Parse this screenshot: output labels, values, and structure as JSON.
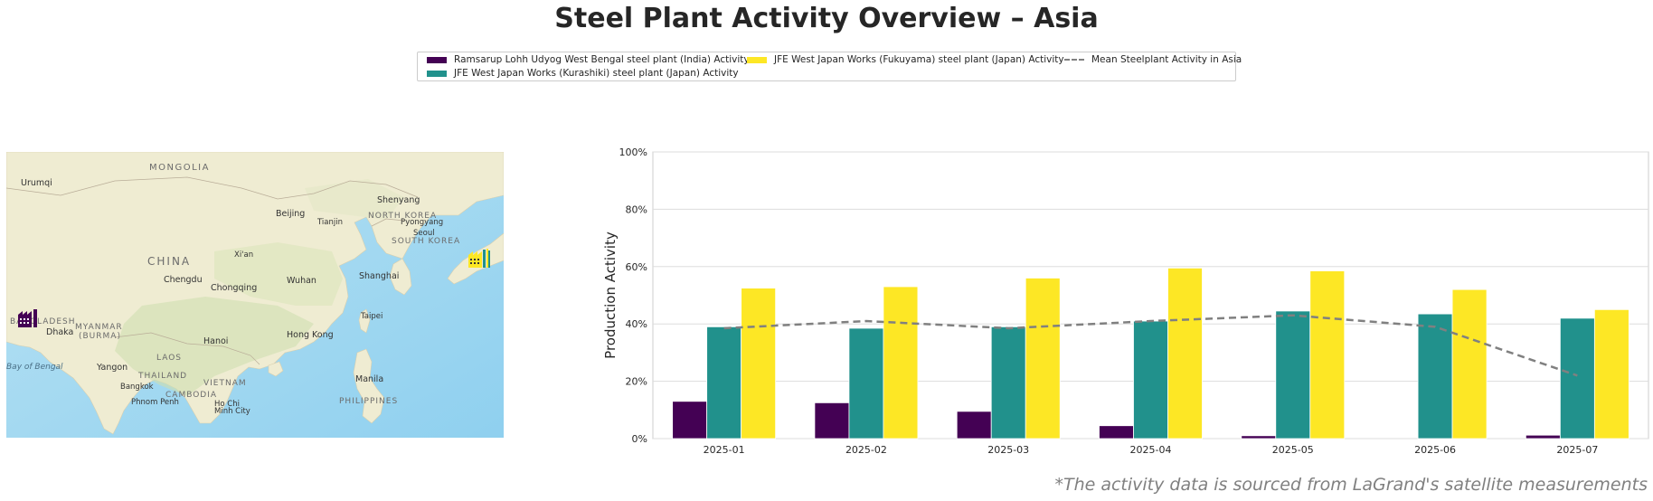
{
  "title": "Steel Plant Activity Overview – Asia",
  "footnote": "*The activity data is sourced from LaGrand's satellite measurements",
  "legend": {
    "items": [
      {
        "label": "Ramsarup Lohh Udyog West Bengal steel plant (India) Activity",
        "color": "#440154"
      },
      {
        "label": "JFE West Japan Works (Kurashiki) steel plant (Japan) Activity",
        "color": "#21918c"
      },
      {
        "label": "JFE West Japan Works (Fukuyama) steel plant (Japan) Activity",
        "color": "#fde725"
      },
      {
        "label": "Mean Steelplant Activity in Asia",
        "color": "#808080"
      }
    ]
  },
  "map": {
    "labels": {
      "mongolia": "MONGOLIA",
      "urumqi": "Urumqi",
      "beijing": "Beijing",
      "tianjin": "Tianjin",
      "shenyang": "Shenyang",
      "north_korea": "NORTH KOREA",
      "pyongyang": "Pyongyang",
      "seoul": "Seoul",
      "south_korea": "SOUTH KOREA",
      "china": "CHINA",
      "xian": "Xi'an",
      "chengdu": "Chengdu",
      "chongqing": "Chongqing",
      "wuhan": "Wuhan",
      "shanghai": "Shanghai",
      "bangladesh": "BANGLADESH",
      "dhaka": "Dhaka",
      "myanmar": "MYANMAR",
      "burma": "(BURMA)",
      "taipei": "Taipei",
      "hanoi": "Hanoi",
      "hong_kong": "Hong Kong",
      "laos": "LAOS",
      "bay_of_bengal": "Bay of Bengal",
      "yangon": "Yangon",
      "thailand": "THAILAND",
      "vietnam": "VIETNAM",
      "bangkok": "Bangkok",
      "cambodia": "CAMBODIA",
      "phnom_penh": "Phnom Penh",
      "ho_chi_minh": "Ho Chi",
      "ho_chi_minh_2": "Minh City",
      "manila": "Manila",
      "philippines": "PHILIPPINES"
    },
    "colors": {
      "land": "#efecd2",
      "water": "#a6d8ef"
    },
    "markers": [
      {
        "name": "india-plant-marker",
        "color": "#440154"
      },
      {
        "name": "japan-plant-marker",
        "colors": [
          "#fde725",
          "#21918c"
        ]
      }
    ]
  },
  "chart_data": {
    "type": "bar",
    "categories": [
      "2025-01",
      "2025-02",
      "2025-03",
      "2025-04",
      "2025-05",
      "2025-06",
      "2025-07"
    ],
    "series": [
      {
        "name": "Ramsarup Lohh Udyog West Bengal steel plant (India) Activity",
        "color": "#440154",
        "values": [
          13,
          12.5,
          9.5,
          4.5,
          1,
          0,
          1.2
        ]
      },
      {
        "name": "JFE West Japan Works (Kurashiki) steel plant (Japan) Activity",
        "color": "#21918c",
        "values": [
          39,
          38.5,
          39,
          41,
          44.5,
          43.5,
          42
        ]
      },
      {
        "name": "JFE West Japan Works (Fukuyama) steel plant (Japan) Activity",
        "color": "#fde725",
        "values": [
          52.5,
          53,
          56,
          59.5,
          58.5,
          52,
          45
        ]
      }
    ],
    "line": {
      "name": "Mean Steelplant Activity in Asia",
      "color": "#808080",
      "values": [
        38.5,
        41,
        38.5,
        41,
        43,
        39,
        22
      ]
    },
    "ylabel": "Production Activity",
    "xlabel": "",
    "ylim": [
      0,
      100
    ],
    "yticks": [
      "0%",
      "20%",
      "40%",
      "60%",
      "80%",
      "100%"
    ],
    "grid": "horizontal",
    "legend_position": "top-center"
  }
}
